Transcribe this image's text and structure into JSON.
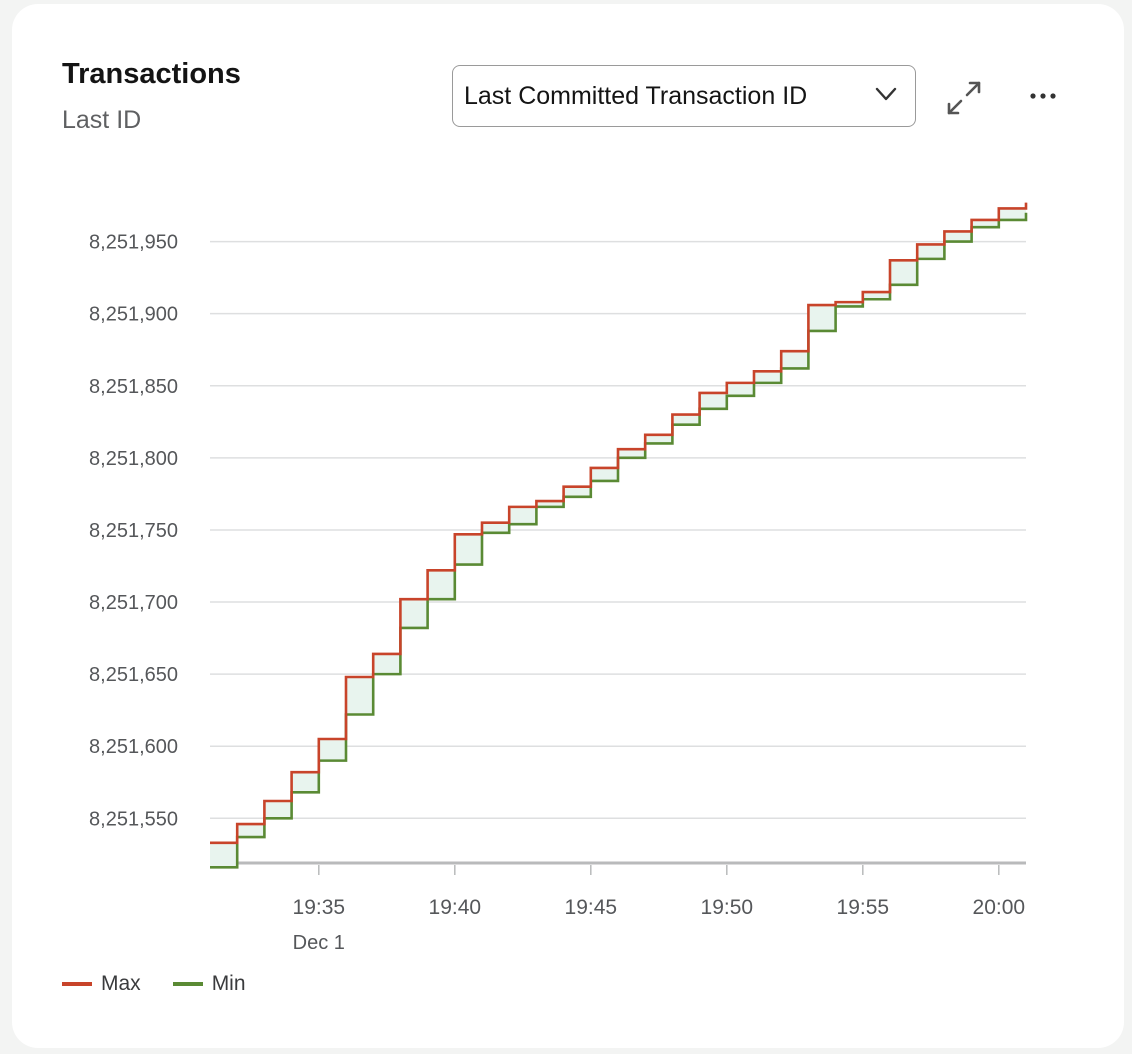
{
  "card": {
    "title": "Transactions",
    "subtitle": "Last ID",
    "metric_select": {
      "value": "Last Committed Transaction ID",
      "icon": "chevron-down-icon"
    },
    "expand_icon": "expand-icon",
    "more_icon": "more-horizontal-icon"
  },
  "chart_data": {
    "type": "line",
    "step": true,
    "x_ticks": [
      "19:35",
      "19:40",
      "19:45",
      "19:50",
      "19:55",
      "20:00"
    ],
    "x_date_label": "Dec 1",
    "y_ticks": [
      "8,251,550",
      "8,251,600",
      "8,251,650",
      "8,251,700",
      "8,251,750",
      "8,251,800",
      "8,251,850",
      "8,251,900",
      "8,251,950"
    ],
    "ylim": [
      8251519,
      8251983
    ],
    "x_range": [
      "19:31",
      "20:01"
    ],
    "grid": true,
    "legend_position": "bottom-left",
    "series": [
      {
        "name": "Max",
        "color": "#c8442a",
        "points": [
          [
            "19:31",
            8251533
          ],
          [
            "19:32",
            8251546
          ],
          [
            "19:33",
            8251562
          ],
          [
            "19:34",
            8251582
          ],
          [
            "19:35",
            8251605
          ],
          [
            "19:36",
            8251648
          ],
          [
            "19:37",
            8251664
          ],
          [
            "19:38",
            8251702
          ],
          [
            "19:39",
            8251722
          ],
          [
            "19:40",
            8251747
          ],
          [
            "19:41",
            8251755
          ],
          [
            "19:42",
            8251766
          ],
          [
            "19:43",
            8251770
          ],
          [
            "19:44",
            8251780
          ],
          [
            "19:45",
            8251793
          ],
          [
            "19:46",
            8251806
          ],
          [
            "19:47",
            8251816
          ],
          [
            "19:48",
            8251830
          ],
          [
            "19:49",
            8251845
          ],
          [
            "19:50",
            8251852
          ],
          [
            "19:51",
            8251860
          ],
          [
            "19:52",
            8251874
          ],
          [
            "19:53",
            8251906
          ],
          [
            "19:54",
            8251908
          ],
          [
            "19:55",
            8251915
          ],
          [
            "19:56",
            8251937
          ],
          [
            "19:57",
            8251948
          ],
          [
            "19:58",
            8251957
          ],
          [
            "19:59",
            8251965
          ],
          [
            "20:00",
            8251973
          ],
          [
            "20:01",
            8251977
          ]
        ]
      },
      {
        "name": "Min",
        "color": "#5a8a34",
        "points": [
          [
            "19:31",
            8251516
          ],
          [
            "19:32",
            8251537
          ],
          [
            "19:33",
            8251550
          ],
          [
            "19:34",
            8251568
          ],
          [
            "19:35",
            8251590
          ],
          [
            "19:36",
            8251622
          ],
          [
            "19:37",
            8251650
          ],
          [
            "19:38",
            8251682
          ],
          [
            "19:39",
            8251702
          ],
          [
            "19:40",
            8251726
          ],
          [
            "19:41",
            8251748
          ],
          [
            "19:42",
            8251754
          ],
          [
            "19:43",
            8251766
          ],
          [
            "19:44",
            8251773
          ],
          [
            "19:45",
            8251784
          ],
          [
            "19:46",
            8251800
          ],
          [
            "19:47",
            8251810
          ],
          [
            "19:48",
            8251823
          ],
          [
            "19:49",
            8251834
          ],
          [
            "19:50",
            8251843
          ],
          [
            "19:51",
            8251852
          ],
          [
            "19:52",
            8251862
          ],
          [
            "19:53",
            8251888
          ],
          [
            "19:54",
            8251905
          ],
          [
            "19:55",
            8251910
          ],
          [
            "19:56",
            8251920
          ],
          [
            "19:57",
            8251938
          ],
          [
            "19:58",
            8251950
          ],
          [
            "19:59",
            8251960
          ],
          [
            "20:00",
            8251965
          ],
          [
            "20:01",
            8251970
          ]
        ]
      }
    ],
    "band_fill_color": "#e8f4ee"
  }
}
